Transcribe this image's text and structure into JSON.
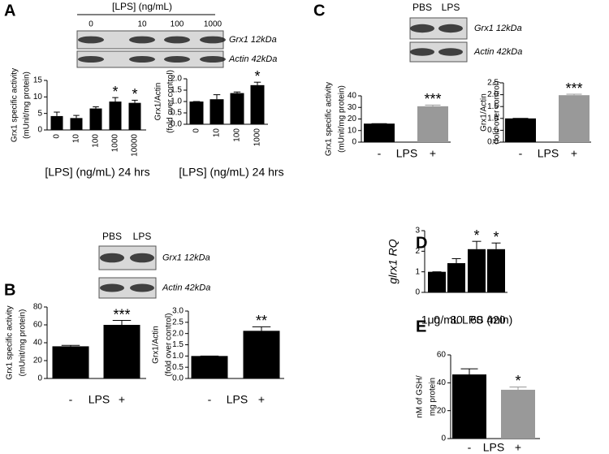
{
  "panels": [
    "A",
    "C",
    "B",
    "D",
    "E"
  ],
  "blots": [
    {
      "header": "[LPS] (ng/mL)",
      "lanes": [
        "0",
        "10",
        "100",
        "1000"
      ],
      "rows": [
        "Grx1 12kDa",
        "Actin 42kDa"
      ]
    },
    {
      "lanes": [
        "PBS",
        "LPS"
      ],
      "rows": [
        "Grx1 12kDa",
        "Actin 42kDa"
      ]
    },
    {
      "lanes": [
        "PBS",
        "LPS"
      ],
      "rows": [
        "Grx1 12kDa",
        "Actin 42kDa"
      ]
    }
  ],
  "chart_data": [
    {
      "type": "bar",
      "ylabel": [
        "Grx1 specific activity",
        "(mUnit/mg protein)"
      ],
      "xlabel": "[LPS] (ng/mL) 24 hrs",
      "categories": [
        "0",
        "10",
        "100",
        "1000",
        "10000"
      ],
      "xtick_rotation": -90,
      "values": [
        4.2,
        3.6,
        6.5,
        8.6,
        8.2
      ],
      "errors": [
        1.2,
        0.8,
        0.5,
        1.2,
        0.8
      ],
      "annotations": [
        null,
        null,
        null,
        "*",
        "*"
      ],
      "color": "#000000",
      "ylim": [
        0,
        15
      ],
      "yticks": [
        0,
        5,
        10,
        15
      ]
    },
    {
      "type": "bar",
      "ylabel": [
        "Grx1/Actin",
        "(fold over control)"
      ],
      "xlabel": "[LPS] (ng/mL) 24 hrs",
      "categories": [
        "0",
        "10",
        "100",
        "1000"
      ],
      "xtick_rotation": -90,
      "values": [
        1.0,
        1.1,
        1.37,
        1.72
      ],
      "errors": [
        0,
        0.2,
        0.05,
        0.13
      ],
      "annotations": [
        null,
        null,
        null,
        "*"
      ],
      "color": "#000000",
      "ylim": [
        0,
        2.0
      ],
      "yticks": [
        {
          "value": 0,
          "label": "0.0"
        },
        {
          "value": 0.5,
          "label": "0.5"
        },
        {
          "value": 1,
          "label": "1.0"
        },
        {
          "value": 1.5,
          "label": "1.5"
        },
        {
          "value": 2,
          "label": "2.0"
        }
      ]
    },
    {
      "type": "bar",
      "ylabel": [
        "Grx1 specific activity",
        "(mUnit/mg protein)"
      ],
      "xlabel": "LPS",
      "categories": [
        "-",
        "+"
      ],
      "values": [
        16,
        31
      ],
      "errors": [
        0,
        1
      ],
      "annotations": [
        null,
        "***"
      ],
      "colors": [
        "#000000",
        "#999999"
      ],
      "ylim": [
        0,
        40
      ],
      "yticks": [
        0,
        10,
        20,
        30,
        40
      ]
    },
    {
      "type": "bar",
      "ylabel": [
        "Grx1/Actin",
        "(fold over control)"
      ],
      "xlabel": "LPS",
      "categories": [
        "-",
        "+"
      ],
      "values": [
        1.0,
        1.98
      ],
      "errors": [
        0,
        0.04
      ],
      "annotations": [
        null,
        "***"
      ],
      "colors": [
        "#000000",
        "#999999"
      ],
      "ylim": [
        0,
        2.5
      ],
      "yticks": [
        {
          "value": 0,
          "label": "0.0"
        },
        {
          "value": 0.5,
          "label": "0.5"
        },
        {
          "value": 1,
          "label": "1.0"
        },
        {
          "value": 1.5,
          "label": "1.5"
        },
        {
          "value": 2,
          "label": "2.0"
        },
        {
          "value": 2.5,
          "label": "2.5"
        }
      ]
    },
    {
      "type": "bar",
      "ylabel": [
        "Grx1 specific activity",
        "(mUnit/mg protein)"
      ],
      "xlabel": "LPS",
      "categories": [
        "-",
        "+"
      ],
      "values": [
        36,
        60
      ],
      "errors": [
        1,
        5
      ],
      "annotations": [
        null,
        "***"
      ],
      "color": "#000000",
      "ylim": [
        0,
        80
      ],
      "yticks": [
        0,
        20,
        40,
        60,
        80
      ]
    },
    {
      "type": "bar",
      "ylabel": [
        "Grx1/Actin",
        "(fold over control)"
      ],
      "xlabel": "LPS",
      "categories": [
        "-",
        "+"
      ],
      "values": [
        1.0,
        2.12
      ],
      "errors": [
        0,
        0.18
      ],
      "annotations": [
        null,
        "**"
      ],
      "color": "#000000",
      "ylim": [
        0,
        3.0
      ],
      "yticks": [
        {
          "value": 0,
          "label": "0.0"
        },
        {
          "value": 0.5,
          "label": "0.5"
        },
        {
          "value": 1,
          "label": "1.0"
        },
        {
          "value": 1.5,
          "label": "1.5"
        },
        {
          "value": 2,
          "label": "2.0"
        },
        {
          "value": 2.5,
          "label": "2.5"
        },
        {
          "value": 3,
          "label": "3.0"
        }
      ]
    },
    {
      "type": "bar",
      "ylabel": [
        "glrx1 RQ"
      ],
      "xlabel": "1μg/mL LPS (min)",
      "categories": [
        "0",
        "30",
        "60",
        "420"
      ],
      "values": [
        1.0,
        1.42,
        2.1,
        2.1
      ],
      "errors": [
        0,
        0.22,
        0.38,
        0.3
      ],
      "annotations": [
        null,
        null,
        "*",
        "*"
      ],
      "color": "#000000",
      "ylim": [
        0,
        3
      ],
      "yticks": [
        0,
        1,
        2,
        3
      ]
    },
    {
      "type": "bar",
      "ylabel": [
        "nM of GSH/",
        "mg protein"
      ],
      "xlabel": "LPS",
      "categories": [
        "-",
        "+"
      ],
      "values": [
        46,
        35
      ],
      "errors": [
        4,
        2
      ],
      "annotations": [
        null,
        "*"
      ],
      "colors": [
        "#000000",
        "#999999"
      ],
      "ylim": [
        0,
        60
      ],
      "yticks": [
        0,
        20,
        40,
        60
      ]
    }
  ]
}
